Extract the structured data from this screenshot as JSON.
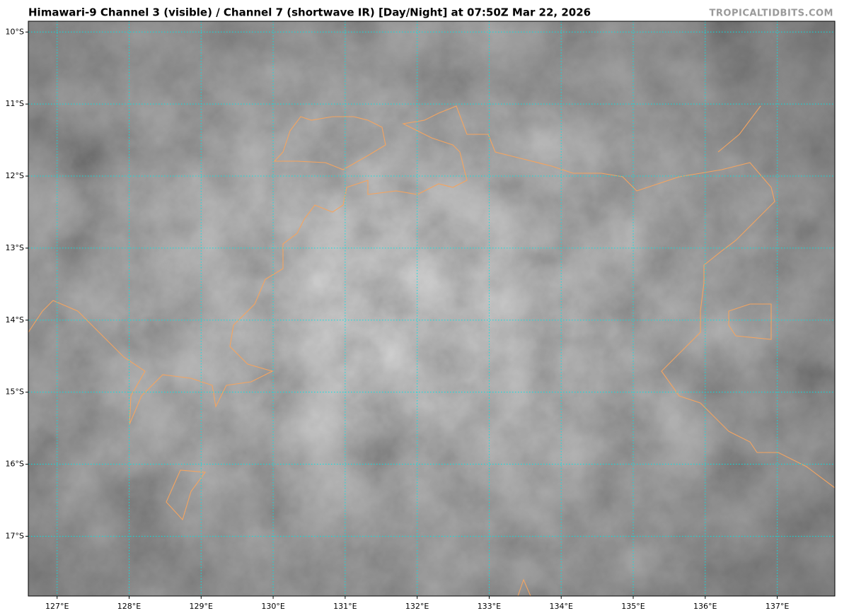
{
  "header": {
    "title": "Himawari-9 Channel 3 (visible) / Channel 7 (shortwave IR) [Day/Night] at 07:50Z Mar 22, 2026",
    "credit": "TROPICALTIDBITS.COM"
  },
  "map": {
    "xlim": [
      126.6,
      137.8
    ],
    "ylim": [
      -17.83,
      -9.85
    ],
    "xticks": [
      {
        "value": 127,
        "label": "127°E"
      },
      {
        "value": 128,
        "label": "128°E"
      },
      {
        "value": 129,
        "label": "129°E"
      },
      {
        "value": 130,
        "label": "130°E"
      },
      {
        "value": 131,
        "label": "131°E"
      },
      {
        "value": 132,
        "label": "132°E"
      },
      {
        "value": 133,
        "label": "133°E"
      },
      {
        "value": 134,
        "label": "134°E"
      },
      {
        "value": 135,
        "label": "135°E"
      },
      {
        "value": 136,
        "label": "136°E"
      },
      {
        "value": 137,
        "label": "137°E"
      }
    ],
    "yticks": [
      {
        "value": -10,
        "label": "10°S"
      },
      {
        "value": -11,
        "label": "11°S"
      },
      {
        "value": -12,
        "label": "12°S"
      },
      {
        "value": -13,
        "label": "13°S"
      },
      {
        "value": -14,
        "label": "14°S"
      },
      {
        "value": -15,
        "label": "15°S"
      },
      {
        "value": -16,
        "label": "16°S"
      },
      {
        "value": -17,
        "label": "17°S"
      }
    ]
  }
}
